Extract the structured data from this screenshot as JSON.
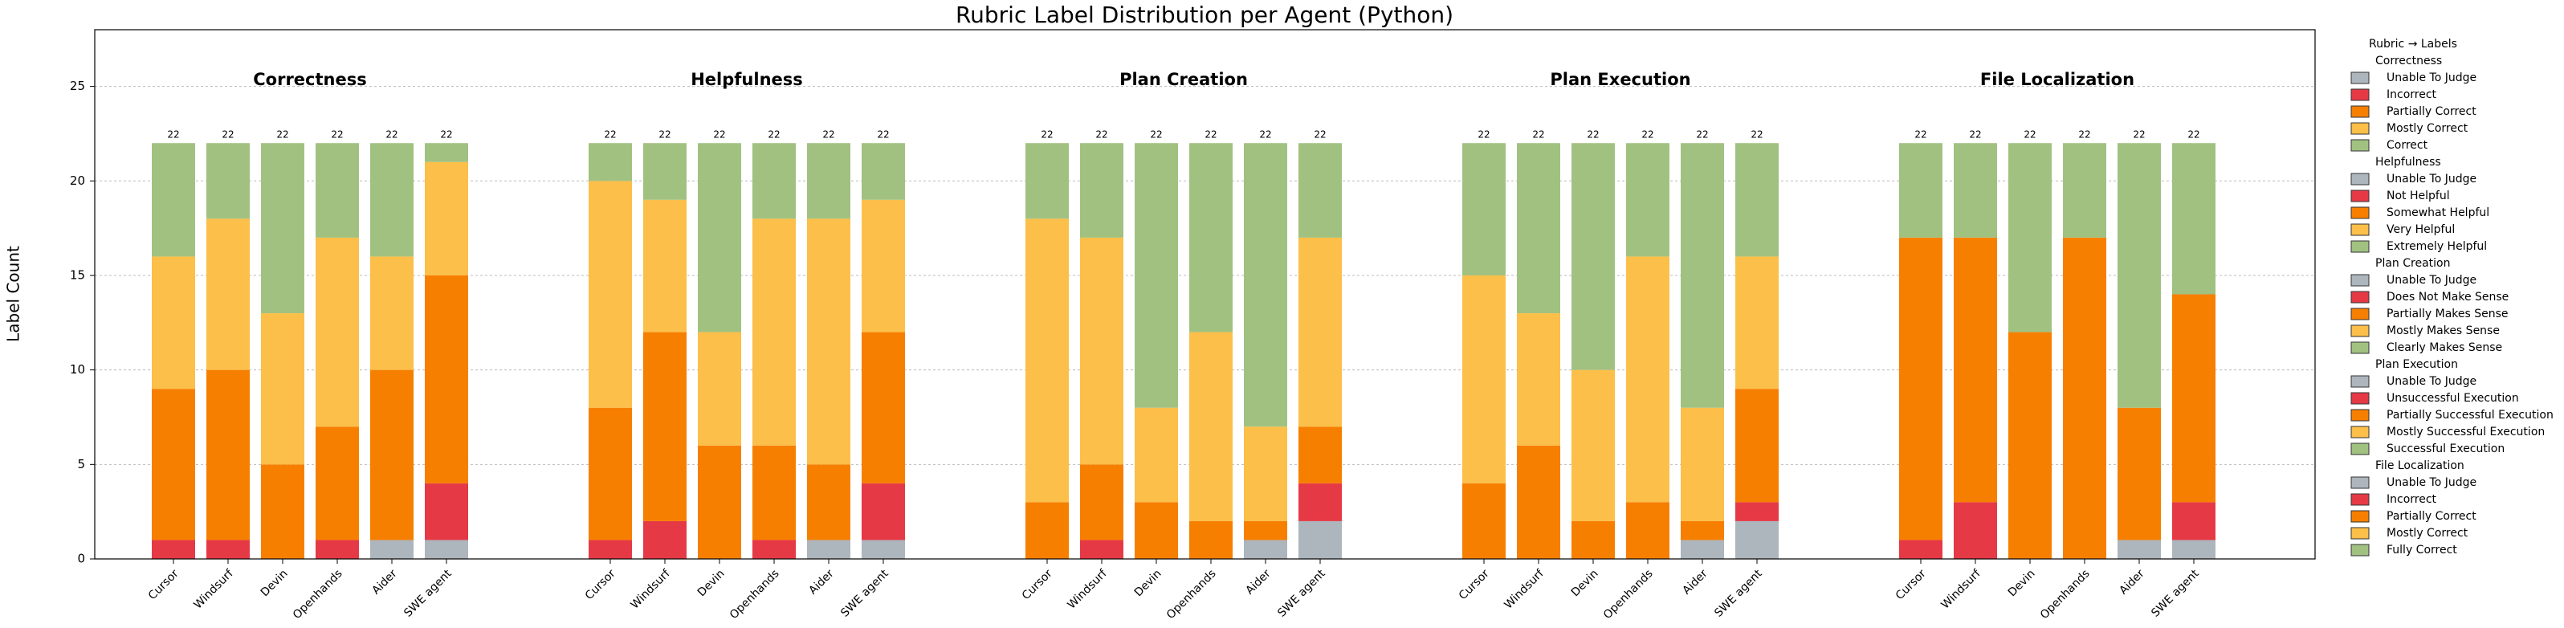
{
  "chart_data": {
    "type": "bar",
    "stacked": true,
    "title": "Rubric Label Distribution per Agent (Python)",
    "y_label": "Label Count",
    "ylim": [
      0,
      28
    ],
    "yticks": [
      0,
      5,
      10,
      15,
      20,
      25
    ],
    "grid": true,
    "legend_title": "Rubric → Labels",
    "legend_position": "outside right",
    "panels": [
      {
        "title": "Correctness",
        "categories": [
          "Cursor",
          "Windsurf",
          "Devin",
          "Openhands",
          "Aider",
          "SWE agent"
        ],
        "totals": [
          22,
          22,
          22,
          22,
          22,
          22
        ],
        "series": [
          {
            "name": "Unable To Judge",
            "color": "#adb5bd",
            "values": [
              0,
              0,
              0,
              0,
              1,
              1
            ]
          },
          {
            "name": "Incorrect",
            "color": "#e63946",
            "values": [
              1,
              1,
              0,
              1,
              0,
              3
            ]
          },
          {
            "name": "Partially Correct",
            "color": "#f77f00",
            "values": [
              8,
              9,
              5,
              6,
              9,
              11
            ]
          },
          {
            "name": "Mostly Correct",
            "color": "#fcbf49",
            "values": [
              7,
              8,
              8,
              10,
              6,
              6
            ]
          },
          {
            "name": "Correct",
            "color": "#a1c181",
            "values": [
              6,
              4,
              9,
              5,
              6,
              1
            ]
          }
        ]
      },
      {
        "title": "Helpfulness",
        "categories": [
          "Cursor",
          "Windsurf",
          "Devin",
          "Openhands",
          "Aider",
          "SWE agent"
        ],
        "totals": [
          22,
          22,
          22,
          22,
          22,
          22
        ],
        "series": [
          {
            "name": "Unable To Judge",
            "color": "#adb5bd",
            "values": [
              0,
              0,
              0,
              0,
              1,
              1
            ]
          },
          {
            "name": "Not Helpful",
            "color": "#e63946",
            "values": [
              1,
              2,
              0,
              1,
              0,
              3
            ]
          },
          {
            "name": "Somewhat Helpful",
            "color": "#f77f00",
            "values": [
              7,
              10,
              6,
              5,
              4,
              8
            ]
          },
          {
            "name": "Very Helpful",
            "color": "#fcbf49",
            "values": [
              12,
              7,
              6,
              12,
              13,
              7
            ]
          },
          {
            "name": "Extremely Helpful",
            "color": "#a1c181",
            "values": [
              2,
              3,
              10,
              4,
              4,
              3
            ]
          }
        ]
      },
      {
        "title": "Plan Creation",
        "categories": [
          "Cursor",
          "Windsurf",
          "Devin",
          "Openhands",
          "Aider",
          "SWE agent"
        ],
        "totals": [
          22,
          22,
          22,
          22,
          22,
          22
        ],
        "series": [
          {
            "name": "Unable To Judge",
            "color": "#adb5bd",
            "values": [
              0,
              0,
              0,
              0,
              1,
              2
            ]
          },
          {
            "name": "Does Not Make Sense",
            "color": "#e63946",
            "values": [
              0,
              1,
              0,
              0,
              0,
              2
            ]
          },
          {
            "name": "Partially Makes Sense",
            "color": "#f77f00",
            "values": [
              3,
              4,
              3,
              2,
              1,
              3
            ]
          },
          {
            "name": "Mostly Makes Sense",
            "color": "#fcbf49",
            "values": [
              15,
              12,
              5,
              10,
              5,
              10
            ]
          },
          {
            "name": "Clearly Makes Sense",
            "color": "#a1c181",
            "values": [
              4,
              5,
              14,
              10,
              15,
              5
            ]
          }
        ]
      },
      {
        "title": "Plan Execution",
        "categories": [
          "Cursor",
          "Windsurf",
          "Devin",
          "Openhands",
          "Aider",
          "SWE agent"
        ],
        "totals": [
          22,
          22,
          22,
          22,
          22,
          22
        ],
        "series": [
          {
            "name": "Unable To Judge",
            "color": "#adb5bd",
            "values": [
              0,
              0,
              0,
              0,
              1,
              2
            ]
          },
          {
            "name": "Unsuccessful Execution",
            "color": "#e63946",
            "values": [
              0,
              0,
              0,
              0,
              0,
              1
            ]
          },
          {
            "name": "Partially Successful Execution",
            "color": "#f77f00",
            "values": [
              4,
              6,
              2,
              3,
              1,
              6
            ]
          },
          {
            "name": "Mostly Successful Execution",
            "color": "#fcbf49",
            "values": [
              11,
              7,
              8,
              13,
              6,
              7
            ]
          },
          {
            "name": "Successful Execution",
            "color": "#a1c181",
            "values": [
              7,
              9,
              12,
              6,
              14,
              6
            ]
          }
        ]
      },
      {
        "title": "File Localization",
        "categories": [
          "Cursor",
          "Windsurf",
          "Devin",
          "Openhands",
          "Aider",
          "SWE agent"
        ],
        "totals": [
          22,
          22,
          22,
          22,
          22,
          22
        ],
        "series": [
          {
            "name": "Unable To Judge",
            "color": "#adb5bd",
            "values": [
              0,
              0,
              0,
              0,
              1,
              1
            ]
          },
          {
            "name": "Incorrect",
            "color": "#e63946",
            "values": [
              1,
              3,
              0,
              0,
              0,
              2
            ]
          },
          {
            "name": "Partially Correct",
            "color": "#f77f00",
            "values": [
              16,
              14,
              12,
              17,
              7,
              11
            ]
          },
          {
            "name": "Mostly Correct",
            "color": "#fcbf49",
            "values": [
              0,
              0,
              0,
              0,
              0,
              0
            ]
          },
          {
            "name": "Fully Correct",
            "color": "#a1c181",
            "values": [
              5,
              5,
              10,
              5,
              14,
              8
            ]
          }
        ]
      }
    ]
  }
}
